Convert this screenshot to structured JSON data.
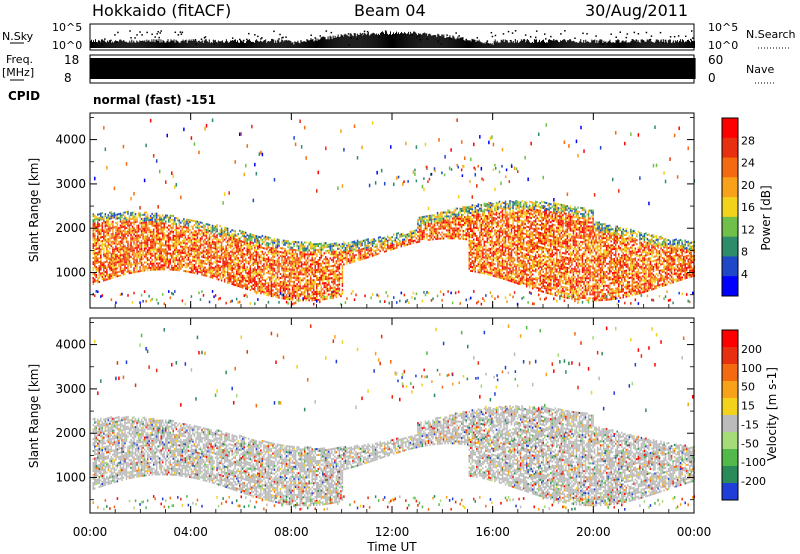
{
  "header": {
    "title": "Hokkaido (fitACF)",
    "beam": "Beam 04",
    "date": "30/Aug/2011"
  },
  "colors": {
    "power_scale": [
      "#0000ff",
      "#1f48c8",
      "#2e8c6a",
      "#6fbf4a",
      "#f2d21a",
      "#f7a21a",
      "#f36a10",
      "#e83010",
      "#ff0000"
    ],
    "velocity_scale": [
      "#1f3ed8",
      "#2a8a5a",
      "#52b94a",
      "#a6db7a",
      "#bbbbbb",
      "#f2d21a",
      "#f7a21a",
      "#f36a10",
      "#e83010",
      "#ff0000"
    ]
  },
  "chart_data": [
    {
      "type": "bar",
      "name": "noise-panel",
      "left_label": "N.Sky",
      "right_label": "N.Search",
      "left_ticks": [
        "10^5",
        "10^0"
      ],
      "right_ticks": [
        "10^5",
        "10^0"
      ]
    },
    {
      "type": "bar",
      "name": "frequency-panel",
      "left_label": "Freq.",
      "left_unit": "[MHz]",
      "right_label": "Nave",
      "left_ticks": [
        "18",
        "8"
      ],
      "right_ticks": [
        "60",
        "0"
      ],
      "cpid_label": "CPID",
      "cpid_text": "normal (fast) -151"
    },
    {
      "type": "heatmap",
      "name": "power-panel",
      "ylabel": "Slant Range [km]",
      "yticks": [
        1000,
        2000,
        3000,
        4000
      ],
      "ylim": [
        200,
        4600
      ],
      "xlim": [
        0,
        24
      ],
      "colorbar_label": "Power [dB]",
      "colorbar_ticks": [
        "28",
        "24",
        "20",
        "16",
        "12",
        "8",
        "4"
      ]
    },
    {
      "type": "heatmap",
      "name": "velocity-panel",
      "ylabel": "Slant Range [km]",
      "yticks": [
        1000,
        2000,
        3000,
        4000
      ],
      "ylim": [
        200,
        4600
      ],
      "xlim": [
        0,
        24
      ],
      "colorbar_label": "Velocity [m s-1]",
      "colorbar_ticks": [
        "200",
        "100",
        "50",
        "15",
        "-15",
        "-50",
        "-100",
        "-200"
      ]
    }
  ],
  "xaxis": {
    "ticks": [
      "00:00",
      "04:00",
      "08:00",
      "12:00",
      "16:00",
      "20:00",
      "00:00"
    ],
    "label": "Time UT"
  }
}
